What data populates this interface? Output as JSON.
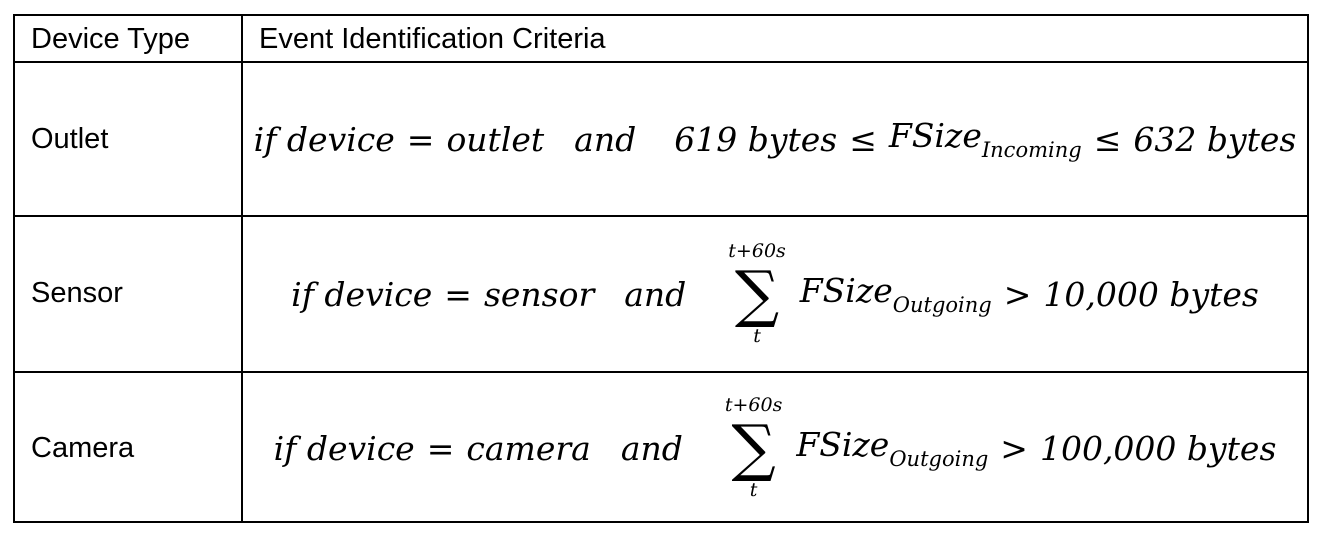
{
  "header": {
    "col1": "Device Type",
    "col2": "Event Identification Criteria"
  },
  "rows": [
    {
      "device_type": "Outlet",
      "formula": {
        "if_text": "if device",
        "eq": "=",
        "device_value": "outlet",
        "and": "and",
        "lower": "619 bytes",
        "le1": "≤",
        "var": "FSize",
        "sub": "Incoming",
        "le2": "≤",
        "upper": "632 bytes"
      }
    },
    {
      "device_type": "Sensor",
      "formula": {
        "if_text": "if device",
        "eq": "=",
        "device_value": "sensor",
        "and": "and",
        "sum_upper": "t+60s",
        "sum_symbol": "∑",
        "sum_lower": "t",
        "var": "FSize",
        "sub": "Outgoing",
        "gt": ">",
        "threshold": "10,000 bytes"
      }
    },
    {
      "device_type": "Camera",
      "formula": {
        "if_text": "if device",
        "eq": "=",
        "device_value": "camera",
        "and": "and",
        "sum_upper": "t+60s",
        "sum_symbol": "∑",
        "sum_lower": "t",
        "var": "FSize",
        "sub": "Outgoing",
        "gt": ">",
        "threshold": "100,000 bytes"
      }
    }
  ]
}
